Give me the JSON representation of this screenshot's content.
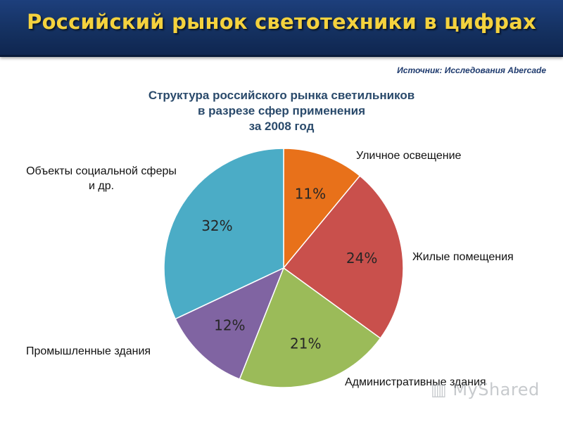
{
  "banner": {
    "title": "Российский рынок светотехники в цифрах"
  },
  "source": "Источник: Исследования Abercade",
  "watermark": "MyShared",
  "chart_data": {
    "type": "pie",
    "title": [
      "Структура российского рынка светильников",
      "в разрезе сфер применения",
      "за 2008 год"
    ],
    "slices": [
      {
        "label": "Уличное освещение",
        "value": 11,
        "display": "11%",
        "color": "#e8711a"
      },
      {
        "label": "Жилые помещения",
        "value": 24,
        "display": "24%",
        "color": "#c9504c"
      },
      {
        "label": "Административные здания",
        "value": 21,
        "display": "21%",
        "color": "#9bbb59"
      },
      {
        "label": "Промышленные здания",
        "value": 12,
        "display": "12%",
        "color": "#8064a2"
      },
      {
        "label": "Объекты социальной сферы и др.",
        "label_lines": [
          "Объекты социальной сферы",
          "и др."
        ],
        "value": 32,
        "display": "32%",
        "color": "#4bacc6"
      }
    ]
  }
}
